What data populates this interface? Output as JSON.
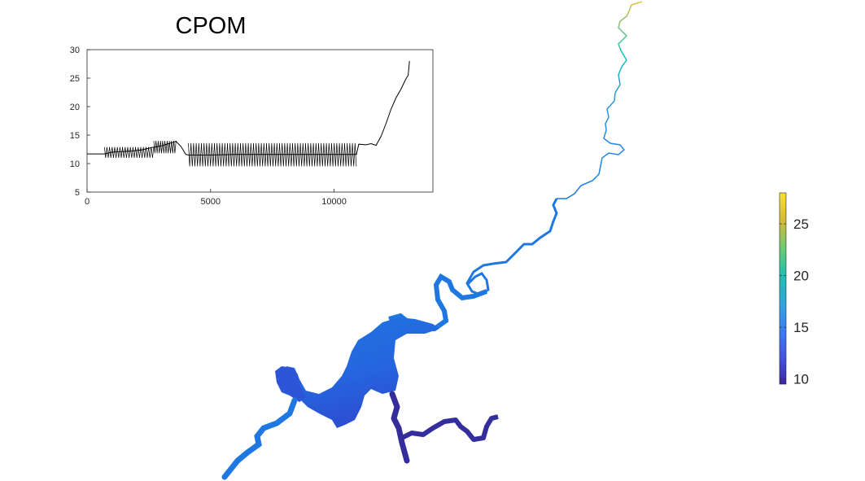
{
  "chart_data": [
    {
      "type": "line",
      "title": "CPOM",
      "xlabel": "",
      "ylabel": "",
      "xlim": [
        0,
        14000
      ],
      "ylim": [
        5,
        30
      ],
      "xticks": [
        "0",
        "5000",
        "10000"
      ],
      "yticks": [
        "5",
        "10",
        "15",
        "20",
        "25",
        "30"
      ],
      "grid": false,
      "line_color": "#000000",
      "series": [
        {
          "x": [
            0,
            700,
            1000,
            1400,
            1800,
            2200,
            2600,
            3000,
            3300,
            3600,
            3800,
            4000,
            4100,
            5000,
            6000,
            7000,
            8000,
            9000,
            10000,
            10900,
            11000,
            11300,
            11500,
            11700,
            11900,
            12100,
            12300,
            12500,
            12700,
            12900,
            13000,
            13050
          ],
          "y": [
            11.7,
            11.7,
            12.0,
            12.1,
            12.2,
            12.4,
            12.8,
            13.1,
            13.5,
            13.9,
            13.0,
            11.6,
            11.5,
            11.5,
            11.6,
            11.6,
            11.6,
            11.6,
            11.6,
            11.6,
            13.4,
            13.3,
            13.5,
            13.2,
            14.8,
            17.0,
            19.5,
            21.5,
            23.0,
            24.8,
            25.5,
            28.0
          ],
          "oscillation": [
            {
              "x_from": 700,
              "x_to": 2700,
              "high": 12.9,
              "low": 11.0
            },
            {
              "x_from": 2700,
              "x_to": 3600,
              "high": 14.0,
              "low": 11.8
            },
            {
              "x_from": 4100,
              "x_to": 10900,
              "high": 13.6,
              "low": 9.5
            }
          ]
        }
      ]
    },
    {
      "type": "heatmap",
      "colorbar": {
        "range": [
          9.5,
          28
        ],
        "ticks": [
          "10",
          "15",
          "20",
          "25"
        ],
        "colormap": [
          "#3e26a8",
          "#4454e4",
          "#3a7df8",
          "#2fa6dd",
          "#1dc1b0",
          "#6ccb72",
          "#d8ba33",
          "#fae229"
        ]
      },
      "map_colors": {
        "main_river": "#1f77e2",
        "lake": "#2565de",
        "lake_lower": "#2d4dd0",
        "tributary": "#332e9c",
        "upper_river": "#2b94e0"
      }
    }
  ]
}
